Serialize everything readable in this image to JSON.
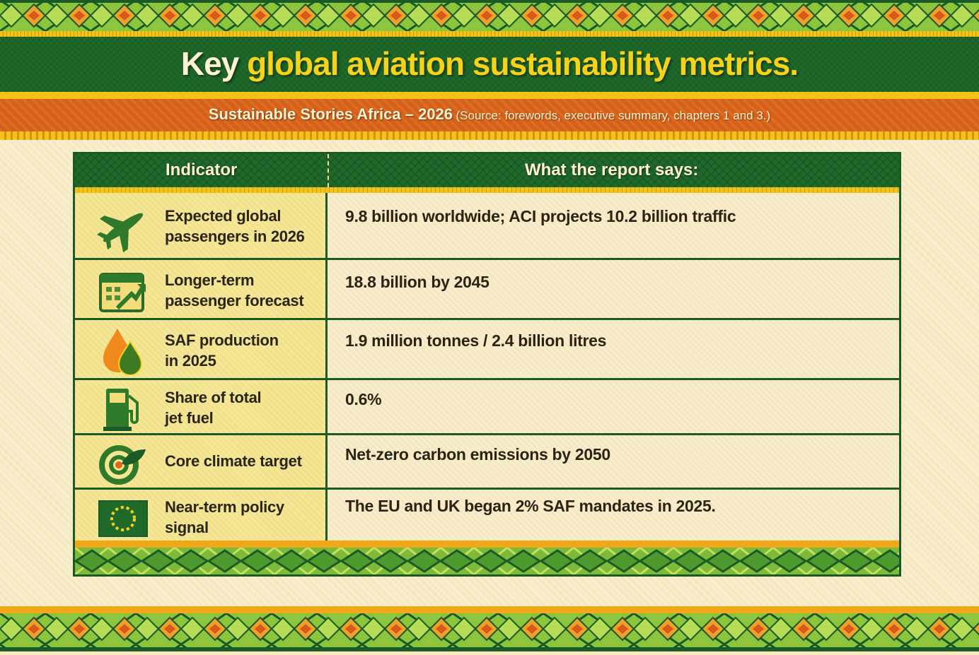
{
  "header": {
    "title_prefix": "Key",
    "title_highlight": "global aviation sustainability metrics.",
    "subtitle": "Sustainable Stories Africa – 2026",
    "source": "(Source: forewords, executive summary, chapters 1 and 3.)"
  },
  "table": {
    "columns": [
      "Indicator",
      "What the report says:"
    ],
    "rows": [
      {
        "icon": "airplane-icon",
        "label_lines": [
          "Expected global",
          "passengers in 2026"
        ],
        "value": "9.8 billion worldwide; ACI projects 10.2 billion traffic"
      },
      {
        "icon": "calendar-growth-icon",
        "label_lines": [
          "Longer-term",
          "passenger forecast"
        ],
        "value": "18.8 billion by 2045"
      },
      {
        "icon": "fuel-drops-icon",
        "label_lines": [
          "SAF production",
          "in 2025"
        ],
        "value": "1.9 million tonnes / 2.4 billion litres"
      },
      {
        "icon": "fuel-pump-icon",
        "label_lines": [
          "Share of total",
          "jet fuel"
        ],
        "value": "0.6%"
      },
      {
        "icon": "target-leaf-icon",
        "label_lines": [
          "Core climate target"
        ],
        "value": "Net-zero carbon emissions by 2050"
      },
      {
        "icon": "eu-flag-icon",
        "label_lines": [
          "Near-term policy",
          "signal"
        ],
        "value": "The EU and UK began 2% SAF mandates in 2025."
      }
    ]
  },
  "colors": {
    "green": "#1f6a2a",
    "yellow": "#f6d21a",
    "orange": "#d6611a",
    "cream": "#f7ecc4"
  }
}
